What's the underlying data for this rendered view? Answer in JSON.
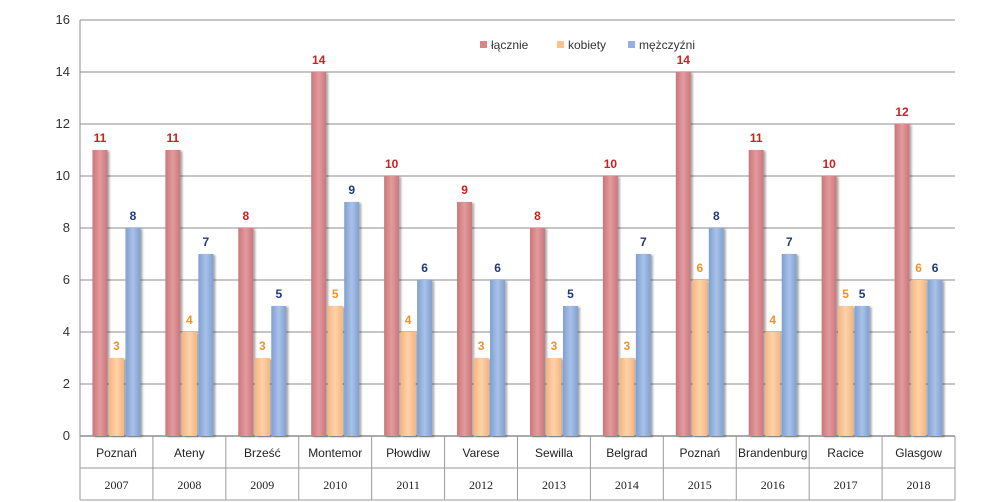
{
  "chart_data": {
    "type": "bar",
    "categories": [
      "Poznań",
      "Ateny",
      "Brześć",
      "Montemor",
      "Płowdiw",
      "Varese",
      "Sewilla",
      "Belgrad",
      "Poznań",
      "Brandenburg",
      "Racice",
      "Glasgow"
    ],
    "years": [
      "2007",
      "2008",
      "2009",
      "2010",
      "2011",
      "2012",
      "2013",
      "2014",
      "2015",
      "2016",
      "2017",
      "2018"
    ],
    "series": [
      {
        "name": "łącznie",
        "values": [
          11,
          11,
          8,
          14,
          10,
          9,
          8,
          10,
          14,
          11,
          10,
          12
        ],
        "color": "#d9868a",
        "label_color": "#cc1f1f"
      },
      {
        "name": "kobiety",
        "values": [
          3,
          4,
          3,
          5,
          4,
          3,
          3,
          3,
          6,
          4,
          5,
          6
        ],
        "color": "#fbc290",
        "label_color": "#f0922b"
      },
      {
        "name": "mężczyźni",
        "values": [
          8,
          7,
          5,
          9,
          6,
          6,
          5,
          7,
          8,
          7,
          5,
          6
        ],
        "color": "#92b1de",
        "label_color": "#1f3a7a"
      }
    ],
    "ylim": [
      0,
      16
    ],
    "yticks": [
      0,
      2,
      4,
      6,
      8,
      10,
      12,
      14,
      16
    ],
    "grid": true,
    "legend": "top-right",
    "title": "",
    "xlabel": "",
    "ylabel": ""
  }
}
